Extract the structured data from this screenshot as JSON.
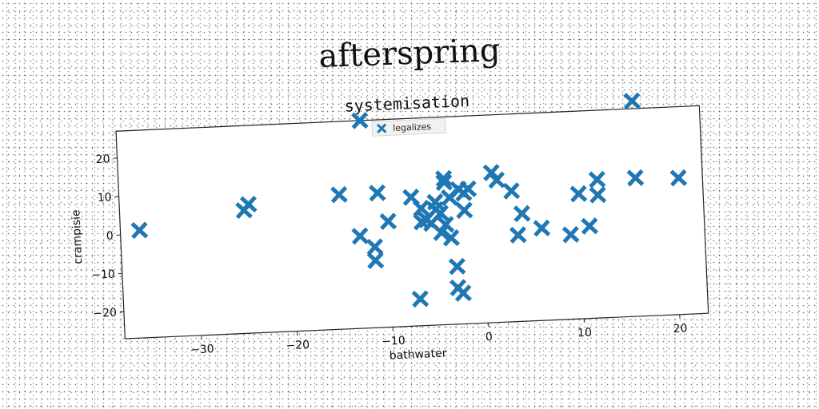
{
  "page_title": "afterspring",
  "colors": {
    "marker": "#1f77b4"
  },
  "chart_data": {
    "type": "scatter",
    "title": "systemisation",
    "xlabel": "bathwater",
    "ylabel": "crampisie",
    "xlim": [
      -38,
      23
    ],
    "ylim": [
      -27,
      27
    ],
    "xticks": [
      -30,
      -20,
      -10,
      0,
      10,
      20
    ],
    "yticks": [
      -20,
      -10,
      0,
      10,
      20
    ],
    "grid": false,
    "legend": {
      "placement": "top-center",
      "entries": [
        "legalizes"
      ]
    },
    "marker": "x",
    "series": [
      {
        "name": "legalizes",
        "points": [
          [
            -36,
            1
          ],
          [
            -25,
            5
          ],
          [
            -24.5,
            6.5
          ],
          [
            -15,
            8
          ],
          [
            -13,
            -3
          ],
          [
            -12.5,
            27
          ],
          [
            -11.5,
            -6
          ],
          [
            -11.5,
            -9.5
          ],
          [
            -11,
            8
          ],
          [
            -10,
            0.5
          ],
          [
            -7.5,
            6.5
          ],
          [
            -7,
            -20
          ],
          [
            -6.5,
            3.5
          ],
          [
            -6.5,
            0
          ],
          [
            -6,
            0.5
          ],
          [
            -5.5,
            -0.5
          ],
          [
            -5,
            3
          ],
          [
            -5,
            5
          ],
          [
            -4.5,
            -3
          ],
          [
            -4.5,
            2
          ],
          [
            -4,
            -1
          ],
          [
            -4,
            10
          ],
          [
            -4,
            11
          ],
          [
            -3.5,
            -4.5
          ],
          [
            -3.5,
            6
          ],
          [
            -3,
            -12
          ],
          [
            -3,
            -17.5
          ],
          [
            -2.5,
            -19
          ],
          [
            -2.5,
            8
          ],
          [
            -2,
            7
          ],
          [
            -2,
            2.5
          ],
          [
            -1.5,
            8
          ],
          [
            1,
            12
          ],
          [
            1.5,
            10
          ],
          [
            3,
            7
          ],
          [
            3.5,
            -4.5
          ],
          [
            4,
            1
          ],
          [
            6,
            -3
          ],
          [
            9,
            -5
          ],
          [
            10,
            5.5
          ],
          [
            11,
            -3
          ],
          [
            12,
            9
          ],
          [
            12,
            5
          ],
          [
            16,
            9
          ],
          [
            16,
            29
          ],
          [
            20.5,
            8.5
          ]
        ]
      }
    ]
  }
}
